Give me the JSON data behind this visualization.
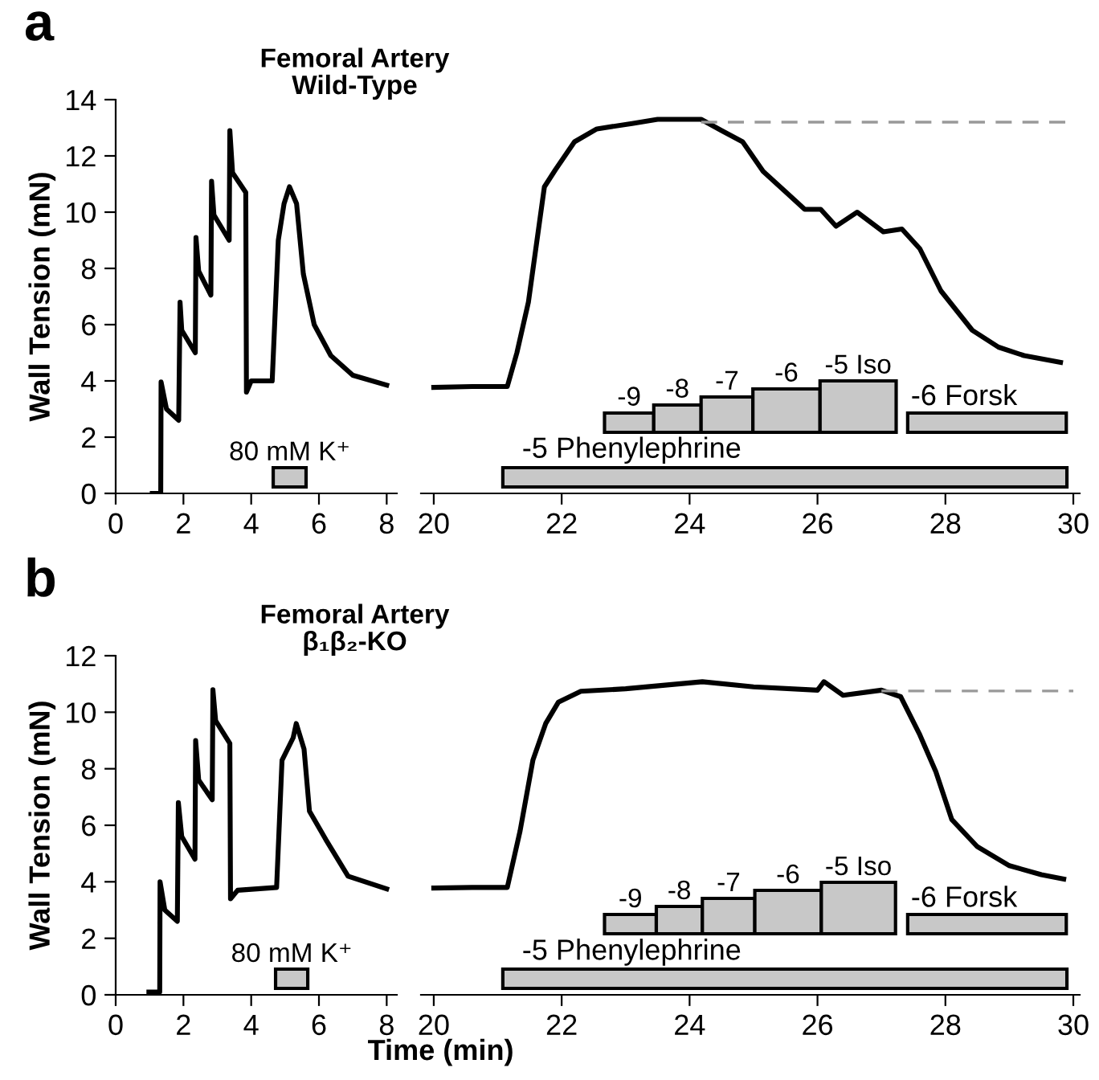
{
  "chart_data": [
    {
      "type": "line",
      "title": "Femoral Artery\nWild-Type",
      "ylabel": "Wall Tension (mN)",
      "annotations": [
        "a"
      ],
      "series": [
        {
          "color": "#000000",
          "x": [
            1.08,
            1.33,
            1.34,
            1.5,
            1.86,
            1.9,
            1.95,
            2.35,
            2.37,
            2.45,
            2.81,
            2.83,
            2.9,
            3.35,
            3.37,
            3.45,
            3.84,
            3.86,
            4.0,
            4.62,
            4.8,
            4.97,
            5.13,
            5.34,
            5.54,
            5.86,
            6.35,
            7.0,
            8.0
          ],
          "values": [
            0,
            0,
            3.96,
            3.0,
            2.6,
            6.8,
            5.8,
            5.0,
            9.1,
            7.9,
            7.05,
            11.1,
            9.9,
            9.0,
            12.9,
            11.4,
            10.7,
            3.6,
            4.0,
            4.0,
            9.0,
            10.3,
            10.9,
            10.3,
            7.8,
            6.0,
            4.9,
            4.2,
            3.85
          ]
        }
      ],
      "xlim": [
        0,
        8.3
      ],
      "xticks": [
        0,
        2,
        4,
        6,
        8
      ],
      "ylim": [
        0,
        14
      ],
      "yticks": [
        0,
        2,
        4,
        6,
        8,
        10,
        12,
        14
      ],
      "bands": [
        {
          "axis": "x",
          "from": 4.65,
          "to": 5.62,
          "label": "80 mM K⁺",
          "color": "#c8c8c8"
        }
      ],
      "legend": false,
      "grid": false
    },
    {
      "type": "line",
      "tick_labels": "x",
      "series": [
        {
          "color": "#000000",
          "x": [
            20.0,
            20.6,
            21.15,
            21.3,
            21.48,
            21.73,
            21.9,
            22.2,
            22.55,
            23.1,
            23.5,
            24.18,
            24.5,
            24.83,
            25.15,
            25.56,
            25.8,
            26.05,
            26.29,
            26.62,
            27.03,
            27.32,
            27.6,
            27.93,
            28.42,
            28.83,
            29.23,
            29.8
          ],
          "values": [
            3.77,
            3.8,
            3.8,
            5.0,
            6.8,
            10.9,
            11.5,
            12.5,
            12.96,
            13.15,
            13.3,
            13.3,
            12.9,
            12.5,
            11.45,
            10.6,
            10.1,
            10.1,
            9.5,
            10.0,
            9.3,
            9.4,
            8.7,
            7.2,
            5.8,
            5.2,
            4.9,
            4.66
          ]
        }
      ],
      "xlim": [
        19.8,
        30.1
      ],
      "xticks": [
        20,
        22,
        24,
        26,
        28,
        30
      ],
      "ylim": [
        0,
        14
      ],
      "ref_lines": [
        {
          "axis": "y",
          "value": 13.2,
          "color": "#999999",
          "line_style": "dashed"
        }
      ],
      "bands": [
        {
          "axis": "x",
          "from": 21.08,
          "to": 29.9,
          "label": "-5 Phenylephrine",
          "color": "#c8c8c8"
        },
        {
          "axis": "x",
          "from": 22.67,
          "to": 23.44,
          "label": "-9",
          "color": "#c8c8c8"
        },
        {
          "axis": "x",
          "from": 23.44,
          "to": 24.18,
          "label": "-8",
          "color": "#c8c8c8"
        },
        {
          "axis": "x",
          "from": 24.18,
          "to": 24.99,
          "label": "-7",
          "color": "#c8c8c8"
        },
        {
          "axis": "x",
          "from": 24.99,
          "to": 26.04,
          "label": "-6",
          "color": "#c8c8c8"
        },
        {
          "axis": "x",
          "from": 26.04,
          "to": 27.23,
          "label": "-5 Iso",
          "color": "#c8c8c8"
        },
        {
          "axis": "x",
          "from": 27.41,
          "to": 29.89,
          "label": "-6 Forsk",
          "color": "#c8c8c8"
        }
      ],
      "legend": false,
      "grid": false
    },
    {
      "type": "line",
      "title": "Femoral Artery\nβ₁β₂-KO",
      "ylabel": "Wall Tension (mN)",
      "annotations": [
        "b"
      ],
      "series": [
        {
          "color": "#000000",
          "x": [
            0.98,
            1.3,
            1.31,
            1.45,
            1.82,
            1.85,
            1.95,
            2.34,
            2.36,
            2.45,
            2.85,
            2.87,
            2.95,
            3.37,
            3.39,
            3.6,
            4.75,
            4.91,
            5.24,
            5.33,
            5.56,
            5.72,
            6.2,
            6.86,
            8.0
          ],
          "values": [
            0.1,
            0.1,
            4.0,
            3.0,
            2.6,
            6.8,
            5.6,
            4.8,
            9.0,
            7.6,
            6.9,
            10.8,
            9.7,
            8.9,
            3.4,
            3.7,
            3.8,
            8.3,
            9.1,
            9.6,
            8.7,
            6.5,
            5.5,
            4.2,
            3.75
          ]
        }
      ],
      "xlim": [
        0,
        8.3
      ],
      "xticks": [
        0,
        2,
        4,
        6,
        8
      ],
      "ylim": [
        0,
        12
      ],
      "yticks": [
        0,
        2,
        4,
        6,
        8,
        10,
        12
      ],
      "bands": [
        {
          "axis": "x",
          "from": 4.72,
          "to": 5.67,
          "label": "80 mM K⁺",
          "color": "#c8c8c8"
        }
      ],
      "legend": false,
      "grid": false
    },
    {
      "type": "line",
      "tick_labels": "x",
      "xlabel": "Time (min)",
      "series": [
        {
          "color": "#000000",
          "x": [
            20.0,
            20.6,
            21.15,
            21.35,
            21.55,
            21.75,
            21.95,
            22.3,
            23.0,
            24.2,
            25.0,
            26.0,
            26.1,
            26.4,
            27.0,
            27.3,
            27.6,
            27.85,
            28.1,
            28.5,
            29.0,
            29.5,
            29.85
          ],
          "values": [
            3.78,
            3.8,
            3.8,
            5.8,
            8.3,
            9.6,
            10.36,
            10.74,
            10.83,
            11.08,
            10.9,
            10.78,
            11.08,
            10.6,
            10.78,
            10.55,
            9.2,
            7.9,
            6.2,
            5.24,
            4.57,
            4.25,
            4.1
          ]
        }
      ],
      "xlim": [
        19.8,
        30.1
      ],
      "xticks": [
        20,
        22,
        24,
        26,
        28,
        30
      ],
      "ylim": [
        0,
        12
      ],
      "ref_lines": [
        {
          "axis": "y",
          "value": 10.75,
          "color": "#999999",
          "line_style": "dashed"
        }
      ],
      "bands": [
        {
          "axis": "x",
          "from": 21.08,
          "to": 29.9,
          "label": "-5 Phenylephrine",
          "color": "#c8c8c8"
        },
        {
          "axis": "x",
          "from": 22.67,
          "to": 23.48,
          "label": "-9",
          "color": "#c8c8c8"
        },
        {
          "axis": "x",
          "from": 23.48,
          "to": 24.2,
          "label": "-8",
          "color": "#c8c8c8"
        },
        {
          "axis": "x",
          "from": 24.2,
          "to": 25.02,
          "label": "-7",
          "color": "#c8c8c8"
        },
        {
          "axis": "x",
          "from": 25.02,
          "to": 26.06,
          "label": "-6",
          "color": "#c8c8c8"
        },
        {
          "axis": "x",
          "from": 26.06,
          "to": 27.22,
          "label": "-5 Iso",
          "color": "#c8c8c8"
        },
        {
          "axis": "x",
          "from": 27.41,
          "to": 29.89,
          "label": "-6 Forsk",
          "color": "#c8c8c8"
        }
      ],
      "legend": false,
      "grid": false
    }
  ]
}
